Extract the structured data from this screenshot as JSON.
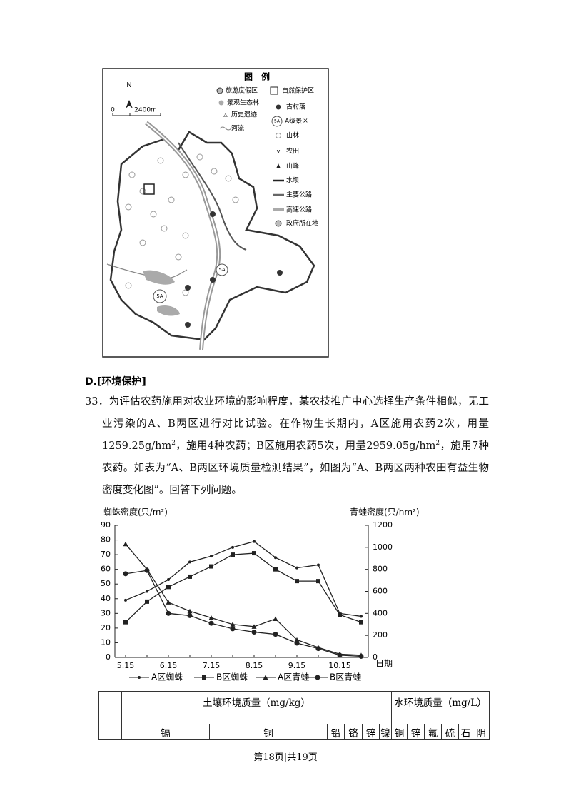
{
  "map": {
    "north": "N",
    "scale_start": "0",
    "scale_end": "2400m",
    "legend_title": "图　例",
    "scenic_icon": "5A",
    "legend": [
      "旅游度假区",
      "自然保护区",
      "景观生态林",
      "古村落",
      "历史遗迹",
      "A级景区",
      "河流",
      "山林",
      "农田",
      "山峰",
      "水坝",
      "主要公路",
      "高速公路",
      "政府所在地"
    ]
  },
  "section": "D.[环境保护]",
  "question": {
    "number": "33．",
    "segments": [
      {
        "text": "为评估农药施用对农业环境的影响程度，某农技推广中心选择生产条件相似，无工业污染的A、B两区进行对比试验。在作物生长期内，A区施用农药2次，用量1259.25g/hm"
      },
      {
        "sup": "2"
      },
      {
        "text": "，施用4种农药；B区施用农药5次，用量2959.05g/hm"
      },
      {
        "sup": "2"
      },
      {
        "text": "，施用7种农药。如表为“A、B两区环境质量检测结果”，如图为“A、B两区两种农田有益生物密度变化图”。回答下列问题。"
      }
    ]
  },
  "chart_data": {
    "type": "line",
    "y_label": "蜘蛛密度(只/m²)",
    "y2_label": "青蛙密度(只/hm²)",
    "x_label": "日期",
    "categories": [
      "5.15",
      null,
      "6.15",
      null,
      "7.15",
      null,
      "8.15",
      null,
      "9.15",
      null,
      "10.15",
      null
    ],
    "ylim": [
      0,
      90
    ],
    "yticks": [
      0,
      10,
      20,
      30,
      40,
      50,
      60,
      70,
      80,
      90
    ],
    "y2lim": [
      0,
      1200
    ],
    "y2ticks": [
      0,
      200,
      400,
      600,
      800,
      1000,
      1200
    ],
    "series": [
      {
        "name": "A区蜘蛛",
        "color": "#222222",
        "marker": "dot",
        "values": [
          39,
          45,
          53,
          65,
          69,
          75,
          79,
          68,
          61,
          63,
          30,
          28
        ]
      },
      {
        "name": "B区蜘蛛",
        "color": "#222222",
        "marker": "square",
        "values": [
          24,
          38,
          48,
          55,
          62,
          70,
          71,
          60,
          52,
          52,
          29,
          24
        ]
      },
      {
        "name": "A区青蛙",
        "color": "#222222",
        "marker": "triangle",
        "axis": "y2",
        "values": [
          1030,
          800,
          500,
          420,
          360,
          300,
          280,
          350,
          160,
          90,
          30,
          20
        ]
      },
      {
        "name": "B区青蛙",
        "color": "#222222",
        "marker": "circle",
        "axis": "y2",
        "values": [
          760,
          790,
          400,
          380,
          310,
          260,
          230,
          210,
          130,
          80,
          20,
          10
        ]
      }
    ]
  },
  "table": {
    "soil": "土壤环境质量（mg/kg）",
    "water": "水环境质量（mg/L）",
    "subheader": [
      "镉",
      "铜",
      "铅",
      "铬",
      "锌",
      "镍",
      "铜",
      "锌",
      "氟",
      "硫",
      "石",
      "阴"
    ]
  },
  "footer": "第18页|共19页"
}
